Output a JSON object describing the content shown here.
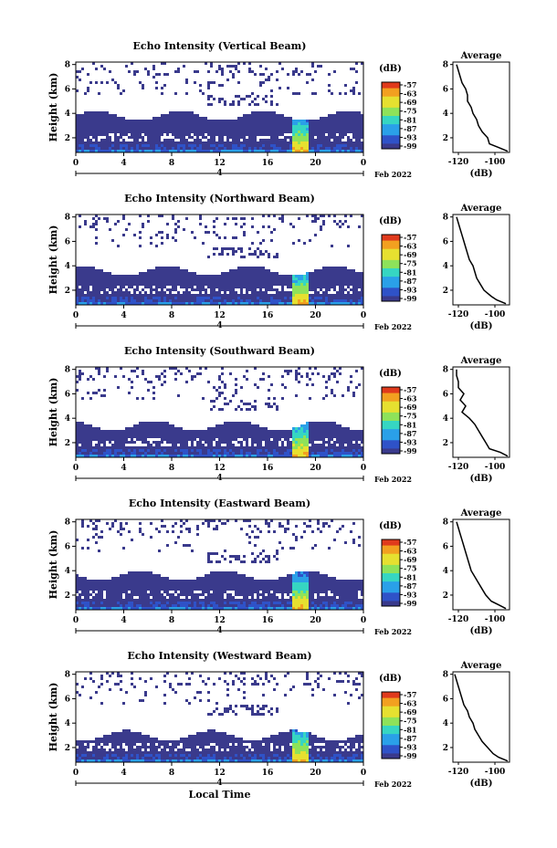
{
  "chart_data": [
    {
      "type": "heatmap",
      "title": "Echo Intensity (Vertical Beam)",
      "ylabel": "Height (km)",
      "x_ticks": [
        "0",
        "4",
        "8",
        "12",
        "16",
        "20",
        "0"
      ],
      "x_sub": "4",
      "date_label": "Feb 2022",
      "y_ticks": [
        "2",
        "4",
        "6",
        "8"
      ],
      "xlim": [
        0,
        24
      ],
      "ylim": [
        0.8,
        8.2
      ],
      "colorbar_unit": "(dB)",
      "colorbar_ticks": [
        "-57",
        "-63",
        "-69",
        "-75",
        "-81",
        "-87",
        "-93",
        "-99"
      ],
      "avg_title": "Average",
      "avg_xlabel": "(dB)",
      "avg_x_ticks": [
        "-120",
        "-100"
      ],
      "avg_y_ticks": [
        "2",
        "4",
        "6",
        "8"
      ],
      "avg_xlim": [
        -123,
        -92
      ],
      "average_profile": {
        "height": [
          0.9,
          1.2,
          1.5,
          2.0,
          2.5,
          3.0,
          3.5,
          4.0,
          4.5,
          5.0,
          5.5,
          6.0,
          6.5,
          7.0,
          7.5,
          8.0
        ],
        "db": [
          -93,
          -98,
          -103,
          -104,
          -107,
          -109,
          -110,
          -112,
          -113,
          -115,
          -115,
          -116,
          -118,
          -119,
          -120,
          -121
        ]
      }
    },
    {
      "type": "heatmap",
      "title": "Echo Intensity (Northward Beam)",
      "ylabel": "Height (km)",
      "x_ticks": [
        "0",
        "4",
        "8",
        "12",
        "16",
        "20",
        "0"
      ],
      "x_sub": "4",
      "date_label": "Feb 2022",
      "y_ticks": [
        "2",
        "4",
        "6",
        "8"
      ],
      "xlim": [
        0,
        24
      ],
      "ylim": [
        0.8,
        8.2
      ],
      "colorbar_unit": "(dB)",
      "colorbar_ticks": [
        "-57",
        "-63",
        "-69",
        "-75",
        "-81",
        "-87",
        "-93",
        "-99"
      ],
      "avg_title": "Average",
      "avg_xlabel": "(dB)",
      "avg_x_ticks": [
        "-120",
        "-100"
      ],
      "avg_y_ticks": [
        "2",
        "4",
        "6",
        "8"
      ],
      "avg_xlim": [
        -123,
        -92
      ],
      "average_profile": {
        "height": [
          0.9,
          1.2,
          1.5,
          2.0,
          2.5,
          3.0,
          3.5,
          4.0,
          4.5,
          5.0,
          5.5,
          6.0,
          6.5,
          7.0,
          7.5,
          8.0
        ],
        "db": [
          -94,
          -99,
          -102,
          -106,
          -108,
          -110,
          -111,
          -112,
          -114,
          -115,
          -116,
          -117,
          -118,
          -119,
          -120,
          -121
        ]
      }
    },
    {
      "type": "heatmap",
      "title": "Echo Intensity (Southward Beam)",
      "ylabel": "Height (km)",
      "x_ticks": [
        "0",
        "4",
        "8",
        "12",
        "16",
        "20",
        "0"
      ],
      "x_sub": "4",
      "date_label": "Feb 2022",
      "y_ticks": [
        "2",
        "4",
        "6",
        "8"
      ],
      "xlim": [
        0,
        24
      ],
      "ylim": [
        0.8,
        8.2
      ],
      "colorbar_unit": "(dB)",
      "colorbar_ticks": [
        "-57",
        "-63",
        "-69",
        "-75",
        "-81",
        "-87",
        "-93",
        "-99"
      ],
      "avg_title": "Average",
      "avg_xlabel": "(dB)",
      "avg_x_ticks": [
        "-120",
        "-100"
      ],
      "avg_y_ticks": [
        "2",
        "4",
        "6",
        "8"
      ],
      "avg_xlim": [
        -123,
        -92
      ],
      "average_profile": {
        "height": [
          0.9,
          1.2,
          1.5,
          2.0,
          2.5,
          3.0,
          3.5,
          4.0,
          4.5,
          5.0,
          5.5,
          6.0,
          6.5,
          7.0,
          7.5,
          8.0
        ],
        "db": [
          -93,
          -97,
          -103,
          -105,
          -107,
          -109,
          -111,
          -114,
          -118,
          -116,
          -119,
          -117,
          -120,
          -120,
          -121,
          -121
        ]
      }
    },
    {
      "type": "heatmap",
      "title": "Echo Intensity (Eastward Beam)",
      "ylabel": "Height (km)",
      "x_ticks": [
        "0",
        "4",
        "8",
        "12",
        "16",
        "20",
        "0"
      ],
      "x_sub": "4",
      "date_label": "Feb 2022",
      "y_ticks": [
        "2",
        "4",
        "6",
        "8"
      ],
      "xlim": [
        0,
        24
      ],
      "ylim": [
        0.8,
        8.2
      ],
      "colorbar_unit": "(dB)",
      "colorbar_ticks": [
        "-57",
        "-63",
        "-69",
        "-75",
        "-81",
        "-87",
        "-93",
        "-99"
      ],
      "avg_title": "Average",
      "avg_xlabel": "(dB)",
      "avg_x_ticks": [
        "-120",
        "-100"
      ],
      "avg_y_ticks": [
        "2",
        "4",
        "6",
        "8"
      ],
      "avg_xlim": [
        -123,
        -92
      ],
      "average_profile": {
        "height": [
          0.9,
          1.2,
          1.5,
          2.0,
          2.5,
          3.0,
          3.5,
          4.0,
          4.5,
          5.0,
          5.5,
          6.0,
          6.5,
          7.0,
          7.5,
          8.0
        ],
        "db": [
          -94,
          -98,
          -102,
          -105,
          -107,
          -109,
          -111,
          -113,
          -114,
          -115,
          -116,
          -117,
          -118,
          -119,
          -120,
          -121
        ]
      }
    },
    {
      "type": "heatmap",
      "title": "Echo Intensity (Westward Beam)",
      "ylabel": "Height (km)",
      "x_ticks": [
        "0",
        "4",
        "8",
        "12",
        "16",
        "20",
        "0"
      ],
      "x_sub": "4",
      "date_label": "Feb 2022",
      "xlabel": "Local Time",
      "y_ticks": [
        "2",
        "4",
        "6",
        "8"
      ],
      "xlim": [
        0,
        24
      ],
      "ylim": [
        0.8,
        8.2
      ],
      "colorbar_unit": "(dB)",
      "colorbar_ticks": [
        "-57",
        "-63",
        "-69",
        "-75",
        "-81",
        "-87",
        "-93",
        "-99"
      ],
      "avg_title": "Average",
      "avg_xlabel": "(dB)",
      "avg_x_ticks": [
        "-120",
        "-100"
      ],
      "avg_y_ticks": [
        "2",
        "4",
        "6",
        "8"
      ],
      "avg_xlim": [
        -123,
        -92
      ],
      "average_profile": {
        "height": [
          0.9,
          1.2,
          1.5,
          2.0,
          2.5,
          3.0,
          3.5,
          4.0,
          4.5,
          5.0,
          5.5,
          6.0,
          6.5,
          7.0,
          7.5,
          8.0
        ],
        "db": [
          -93,
          -98,
          -101,
          -104,
          -107,
          -109,
          -111,
          -112,
          -114,
          -115,
          -117,
          -118,
          -119,
          -120,
          -121,
          -122
        ]
      }
    }
  ],
  "colors": {
    "colormap": [
      "#3a3a8c",
      "#2f52c8",
      "#2aa0e8",
      "#36d6c2",
      "#8ee25a",
      "#e6e030",
      "#f2a020",
      "#e03a1c"
    ],
    "line": "#000000",
    "background": "#ffffff"
  }
}
